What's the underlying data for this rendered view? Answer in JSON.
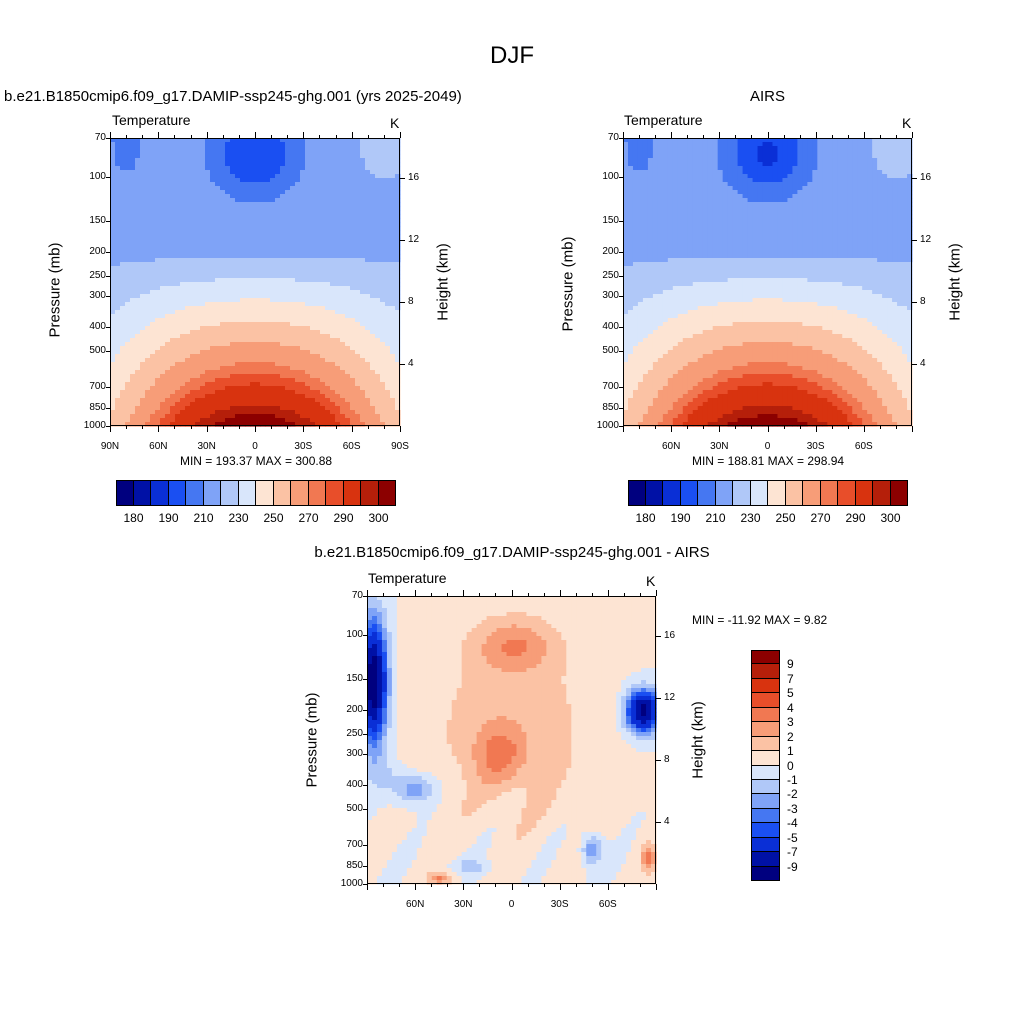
{
  "figure": {
    "title": "DJF",
    "panels": [
      {
        "id": "model",
        "title": "b.e21.B1850cmip6.f09_g17.DAMIP-ssp245-ghg.001 (yrs 2025-2049)",
        "variable": "Temperature",
        "units": "K",
        "ylabel_left": "Pressure (mb)",
        "ylabel_right": "Height (km)",
        "pressure_ticks": [
          "70",
          "100",
          "150",
          "200",
          "250",
          "300",
          "400",
          "500",
          "700",
          "850",
          "1000"
        ],
        "height_ticks": [
          "16",
          "12",
          "8",
          "4"
        ],
        "lat_ticks": [
          "90N",
          "60N",
          "30N",
          "0",
          "30S",
          "60S",
          "90S"
        ],
        "min_max": "MIN = 193.37   MAX = 300.88"
      },
      {
        "id": "obs",
        "title": "AIRS",
        "variable": "Temperature",
        "units": "K",
        "ylabel_left": "Pressure (mb)",
        "ylabel_right": "Height (km)",
        "pressure_ticks": [
          "70",
          "100",
          "150",
          "200",
          "250",
          "300",
          "400",
          "500",
          "700",
          "850",
          "1000"
        ],
        "height_ticks": [
          "16",
          "12",
          "8",
          "4"
        ],
        "lat_ticks": [
          "60N",
          "30N",
          "0",
          "30S",
          "60S"
        ],
        "min_max": "MIN = 188.81   MAX = 298.94"
      },
      {
        "id": "diff",
        "title": "b.e21.B1850cmip6.f09_g17.DAMIP-ssp245-ghg.001 - AIRS",
        "variable": "Temperature",
        "units": "K",
        "ylabel_left": "Pressure (mb)",
        "ylabel_right": "Height (km)",
        "pressure_ticks": [
          "70",
          "100",
          "150",
          "200",
          "250",
          "300",
          "400",
          "500",
          "700",
          "850",
          "1000"
        ],
        "height_ticks": [
          "16",
          "12",
          "8",
          "4"
        ],
        "lat_ticks": [
          "60N",
          "30N",
          "0",
          "30S",
          "60S"
        ],
        "min_max": "MIN = -11.92  MAX =   9.82"
      }
    ],
    "colorbar_abs": {
      "labels": [
        "180",
        "190",
        "210",
        "230",
        "250",
        "270",
        "290",
        "300"
      ],
      "colors": [
        "#00007f",
        "#0011a6",
        "#0a2fd6",
        "#1a4ff2",
        "#4577f2",
        "#7fa3f7",
        "#b0c8f8",
        "#d9e6fb",
        "#fde4d3",
        "#fbc2a4",
        "#f79d78",
        "#f17852",
        "#e84e2a",
        "#d8330f",
        "#b51f0a",
        "#8c0000"
      ]
    },
    "colorbar_diff": {
      "labels": [
        "9",
        "7",
        "5",
        "4",
        "3",
        "2",
        "1",
        "0",
        "-1",
        "-2",
        "-3",
        "-4",
        "-5",
        "-7",
        "-9"
      ],
      "colors": [
        "#8c0000",
        "#b51f0a",
        "#d8330f",
        "#e84e2a",
        "#f17852",
        "#f79d78",
        "#fbc2a4",
        "#fde4d3",
        "#d9e6fb",
        "#b0c8f8",
        "#7fa3f7",
        "#4577f2",
        "#1a4ff2",
        "#0a2fd6",
        "#0011a6",
        "#00007f"
      ]
    }
  },
  "chart_data": [
    {
      "type": "heatmap",
      "title": "b.e21.B1850cmip6.f09_g17.DAMIP-ssp245-ghg.001 (yrs 2025-2049)",
      "variable": "Temperature",
      "units": "K",
      "x": "latitude",
      "xlim": [
        90,
        -90
      ],
      "xticks": [
        "90N",
        "60N",
        "30N",
        "0",
        "30S",
        "60S",
        "90S"
      ],
      "ylabel": "Pressure (mb)",
      "ylim": [
        1000,
        70
      ],
      "y_scale": "log",
      "y2label": "Height (km)",
      "min": 193.37,
      "max": 300.88,
      "contour_levels": [
        180,
        185,
        190,
        200,
        210,
        220,
        230,
        240,
        250,
        260,
        270,
        275,
        280,
        290,
        295,
        300
      ],
      "pattern": "warmest near surface at equator (~300 K); coldest near 70–100 mb tropical tropopause (~193 K)"
    },
    {
      "type": "heatmap",
      "title": "AIRS",
      "variable": "Temperature",
      "units": "K",
      "x": "latitude",
      "xlim": [
        90,
        -90
      ],
      "xticks": [
        "60N",
        "30N",
        "0",
        "30S",
        "60S"
      ],
      "ylabel": "Pressure (mb)",
      "ylim": [
        1000,
        70
      ],
      "y_scale": "log",
      "y2label": "Height (km)",
      "min": 188.81,
      "max": 298.94,
      "contour_levels": [
        180,
        185,
        190,
        200,
        210,
        220,
        230,
        240,
        250,
        260,
        270,
        275,
        280,
        290,
        295,
        300
      ]
    },
    {
      "type": "heatmap",
      "title": "b.e21.B1850cmip6.f09_g17.DAMIP-ssp245-ghg.001 - AIRS",
      "variable": "Temperature",
      "units": "K",
      "x": "latitude",
      "xlim": [
        90,
        -90
      ],
      "xticks": [
        "60N",
        "30N",
        "0",
        "30S",
        "60S"
      ],
      "ylabel": "Pressure (mb)",
      "ylim": [
        1000,
        70
      ],
      "y_scale": "log",
      "y2label": "Height (km)",
      "min": -11.92,
      "max": 9.82,
      "contour_levels": [
        -9,
        -7,
        -5,
        -4,
        -3,
        -2,
        -1,
        0,
        1,
        2,
        3,
        4,
        5,
        7,
        9
      ],
      "pattern": "cold bias in northern polar upper troposphere (~-9 K) and southern mid-high latitudes near 200 mb; warm bias (~3–4 K) in tropical upper troposphere near 100 mb and 250–300 mb"
    }
  ]
}
